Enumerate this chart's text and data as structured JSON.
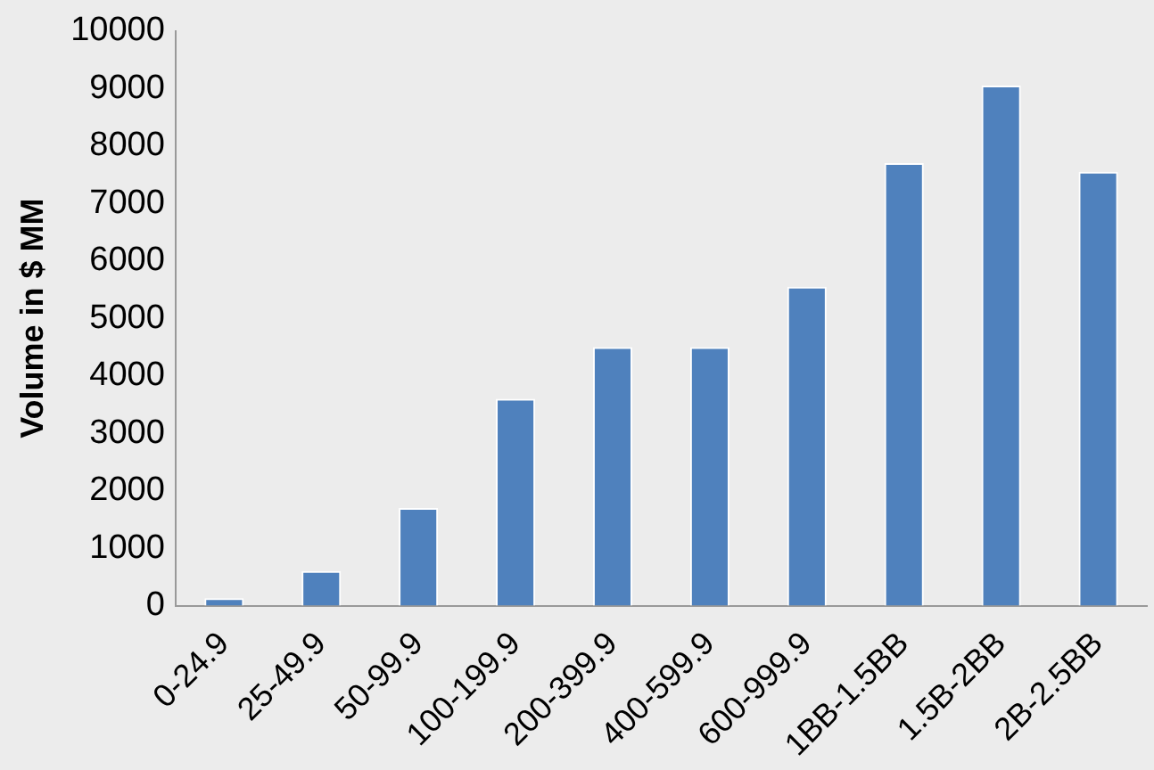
{
  "chart_data": {
    "type": "bar",
    "ylabel": "Volume in $ MM",
    "categories": [
      "0-24.9",
      "25-49.9",
      "50-99.9",
      "100-199.9",
      "200-399.9",
      "400-599.9",
      "600-999.9",
      "1BB-1.5BB",
      "1.5B-2BB",
      "2B-2.5BB"
    ],
    "values": [
      130,
      600,
      1700,
      3600,
      4500,
      4500,
      5550,
      7700,
      9050,
      7550
    ],
    "color": "#4f81bd",
    "ylim": [
      0,
      10000
    ],
    "yticks": [
      0,
      1000,
      2000,
      3000,
      4000,
      5000,
      6000,
      7000,
      8000,
      9000,
      10000
    ],
    "grid": false
  }
}
